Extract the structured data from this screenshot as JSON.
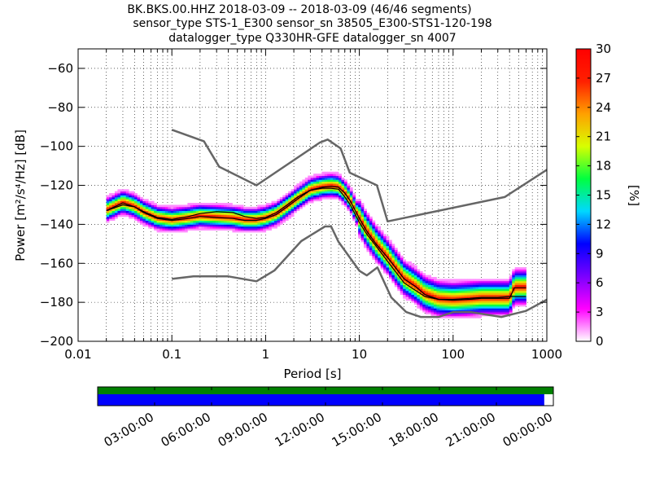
{
  "title_lines": [
    "BK.BKS.00.HHZ   2018-03-09 -- 2018-03-09  (46/46 segments)",
    "sensor_type STS-1_E300 sensor_sn 38505_E300-STS1-120-198",
    "datalogger_type Q330HR-GFE datalogger_sn 4007"
  ],
  "chart_data": {
    "type": "heatmap",
    "description_type": "probabilistic power spectral density",
    "xlabel": "Period [s]",
    "ylabel": "Power [m²/s⁴/Hz] [dB]",
    "xscale": "log",
    "xlim": [
      0.01,
      1000
    ],
    "ylim": [
      -200,
      -50
    ],
    "xticks": [
      0.01,
      0.1,
      1,
      10,
      100,
      1000
    ],
    "xtick_labels": [
      "0.01",
      "0.1",
      "1",
      "10",
      "100",
      "1000"
    ],
    "yticks": [
      -200,
      -180,
      -160,
      -140,
      -120,
      -100,
      -80,
      -60
    ],
    "ytick_labels": [
      "−200",
      "−180",
      "−160",
      "−140",
      "−120",
      "−100",
      "−80",
      "−60"
    ],
    "colorbar": {
      "label": "[%]",
      "range": [
        0,
        30
      ],
      "ticks": [
        0,
        3,
        6,
        9,
        12,
        15,
        18,
        21,
        24,
        27,
        30
      ],
      "stops": [
        "#ffffff",
        "#ff00ff",
        "#7a00ff",
        "#0000ff",
        "#00d8ff",
        "#00ff40",
        "#d8ff00",
        "#ffa000",
        "#ff2000",
        "#ff0000"
      ]
    },
    "noise_model_color": "#666666",
    "median_color": "#000000",
    "mode_color": "#000000",
    "noise_model_high": {
      "name": "NHNM",
      "x": [
        0.1,
        0.22,
        0.32,
        0.8,
        3.8,
        4.6,
        6.3,
        7.9,
        15.4,
        20,
        354.8,
        1000
      ],
      "y": [
        -91.5,
        -97.4,
        -110.5,
        -120,
        -98,
        -96.5,
        -101,
        -113.5,
        -120,
        -138.5,
        -126,
        -112
      ]
    },
    "noise_model_low": {
      "name": "NLNM",
      "x": [
        0.1,
        0.17,
        0.4,
        0.8,
        1.24,
        2.4,
        4.3,
        5,
        6,
        10,
        12,
        15.6,
        21.9,
        31.6,
        45,
        70,
        101,
        154,
        328,
        600,
        1000
      ],
      "y": [
        -168,
        -166.7,
        -166.7,
        -169.2,
        -163.7,
        -148.6,
        -141.1,
        -141.1,
        -149,
        -163.8,
        -166.2,
        -162.1,
        -177.5,
        -185,
        -187.5,
        -187.5,
        -185,
        -185,
        -187.5,
        -184.4,
        -178.6
      ]
    },
    "median": {
      "x": [
        0.02,
        0.03,
        0.04,
        0.05,
        0.07,
        0.1,
        0.15,
        0.2,
        0.3,
        0.45,
        0.6,
        0.8,
        1,
        1.3,
        1.7,
        2.2,
        3,
        4,
        5,
        6,
        7,
        8,
        10,
        12,
        15,
        20,
        25,
        30,
        40,
        50,
        70,
        100,
        150,
        200,
        300,
        400,
        600
      ],
      "y": [
        -133,
        -130,
        -131,
        -133.5,
        -136.5,
        -137.5,
        -136,
        -134.5,
        -133.5,
        -134,
        -136,
        -137,
        -136.5,
        -134,
        -130,
        -126,
        -122.5,
        -121.5,
        -121.5,
        -122,
        -126,
        -130,
        -139,
        -145,
        -151,
        -159,
        -165,
        -170,
        -174,
        -177,
        -178.5,
        -178.5,
        -178,
        -177.5,
        -177.5,
        -177,
        -177
      ]
    },
    "mode": {
      "x": [
        0.02,
        0.03,
        0.04,
        0.05,
        0.07,
        0.1,
        0.15,
        0.2,
        0.3,
        0.45,
        0.6,
        0.8,
        1,
        1.3,
        1.7,
        2.2,
        3,
        4,
        5,
        6,
        7,
        8,
        10,
        12,
        15,
        20,
        25,
        30,
        40,
        50,
        70,
        100,
        150,
        200,
        300,
        400,
        450,
        600
      ],
      "y": [
        -133,
        -129,
        -131,
        -134,
        -137,
        -138,
        -137,
        -136,
        -136.5,
        -137,
        -138,
        -138,
        -137,
        -135,
        -131,
        -127,
        -122.5,
        -121,
        -120.5,
        -121,
        -124,
        -128,
        -137,
        -143.5,
        -150,
        -157,
        -163,
        -168,
        -172,
        -176,
        -178.5,
        -179,
        -178.5,
        -178,
        -178,
        -178,
        -172.5,
        -172.5
      ]
    },
    "time_coverage": {
      "tick_labels": [
        "03:00:00",
        "06:00:00",
        "09:00:00",
        "12:00:00",
        "15:00:00",
        "18:00:00",
        "21:00:00",
        "00:00:00"
      ],
      "data_fraction": 0.98,
      "data_color": "#0000ff",
      "full_color": "#008000"
    }
  }
}
